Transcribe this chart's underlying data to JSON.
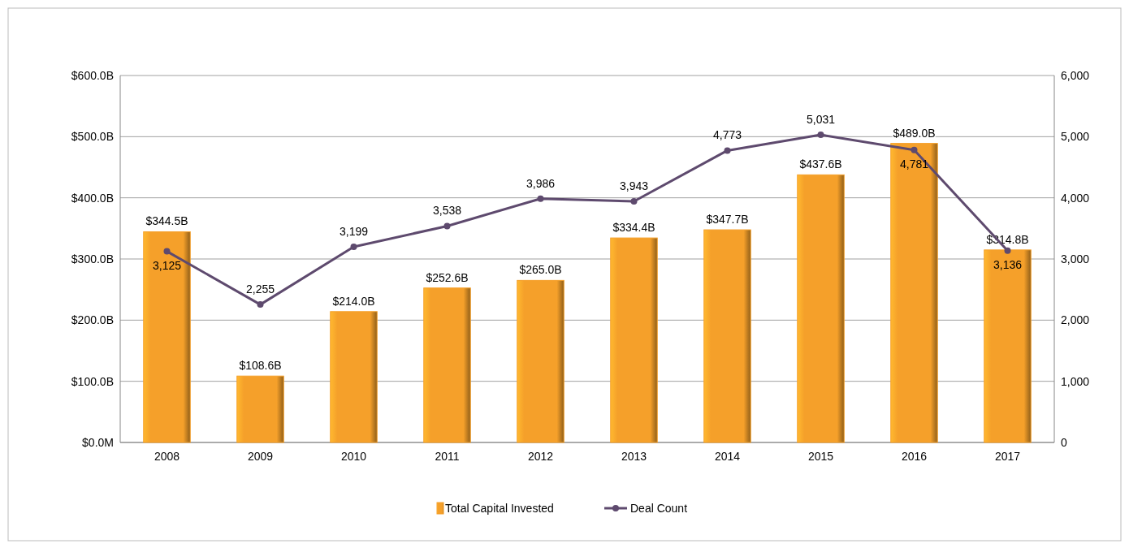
{
  "chart_data": {
    "type": "bar",
    "categories": [
      "2008",
      "2009",
      "2010",
      "2011",
      "2012",
      "2013",
      "2014",
      "2015",
      "2016",
      "2017"
    ],
    "series": [
      {
        "name": "Total Capital Invested",
        "color": "#f5a02a",
        "values": [
          344.5,
          108.6,
          214.0,
          252.6,
          265.0,
          334.4,
          347.7,
          437.6,
          489.0,
          314.8
        ],
        "value_labels": [
          "$344.5B",
          "$108.6B",
          "$214.0B",
          "$252.6B",
          "$265.0B",
          "$334.4B",
          "$347.7B",
          "$437.6B",
          "$489.0B",
          "$314.8B"
        ]
      },
      {
        "name": "Deal Count",
        "type": "line",
        "axis": "y2",
        "color": "#5e4a6e",
        "values": [
          3125,
          2255,
          3199,
          3538,
          3986,
          3943,
          4773,
          5031,
          4781,
          3136
        ],
        "value_labels": [
          "3,125",
          "2,255",
          "3,199",
          "3,538",
          "3,986",
          "3,943",
          "4,773",
          "5,031",
          "4,781",
          "3,136"
        ]
      }
    ],
    "ylim": [
      0,
      600
    ],
    "yticks": [
      {
        "value": 0,
        "label": "$0.0M"
      },
      {
        "value": 100,
        "label": "$100.0B"
      },
      {
        "value": 200,
        "label": "$200.0B"
      },
      {
        "value": 300,
        "label": "$300.0B"
      },
      {
        "value": 400,
        "label": "$400.0B"
      },
      {
        "value": 500,
        "label": "$500.0B"
      },
      {
        "value": 600,
        "label": "$600.0B"
      }
    ],
    "y2lim": [
      0,
      6000
    ],
    "y2ticks": [
      0,
      {
        "value": 1000,
        "label": "1,000"
      },
      {
        "value": 2000,
        "label": "2,000"
      },
      {
        "value": 3000,
        "label": "3,000"
      },
      {
        "value": 4000,
        "label": "4,000"
      },
      {
        "value": 5000,
        "label": "5,000"
      },
      {
        "value": 6000,
        "label": "6,000"
      }
    ],
    "grid": "y",
    "legend": "bottom",
    "marker": "circle"
  }
}
